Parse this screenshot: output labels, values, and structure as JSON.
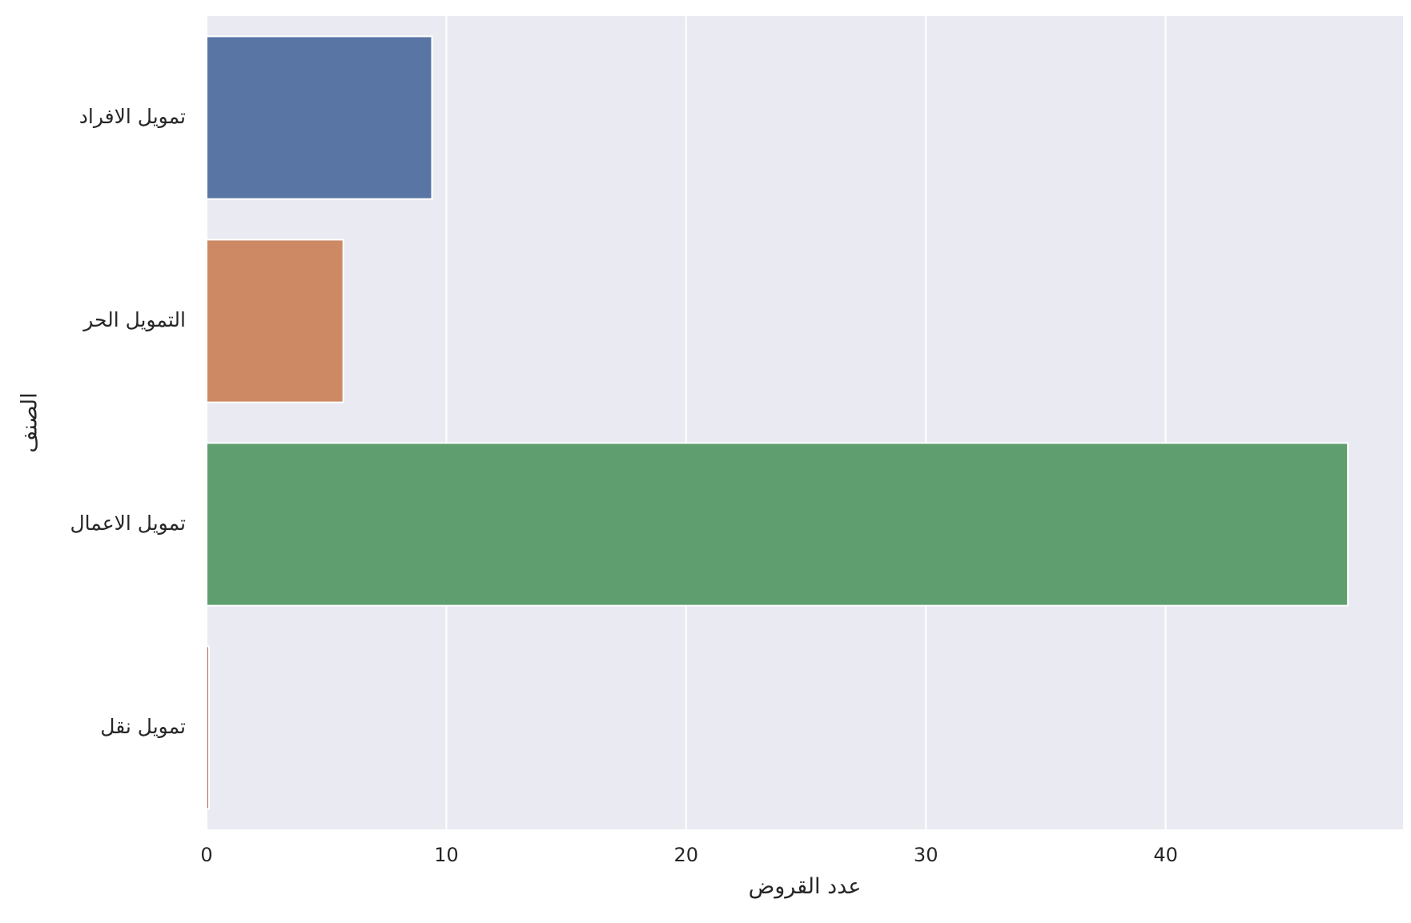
{
  "chart_data": {
    "type": "bar",
    "orientation": "horizontal",
    "categories": [
      "تمويل الافراد",
      "التمويل الحر",
      "تمويل الاعمال",
      "تمويل نقل"
    ],
    "values": [
      9.4,
      5.7,
      47.6,
      0.1
    ],
    "colors": [
      "#5975a4",
      "#cc8963",
      "#5f9e6e",
      "#b55d60"
    ],
    "xlabel": "عدد القروض",
    "ylabel": "الصنف",
    "xlim": [
      0,
      49.9
    ],
    "xticks": [
      0,
      10,
      20,
      30,
      40
    ],
    "grid": true,
    "legend": "none",
    "style": {
      "plot_background": "#eaeaf2",
      "grid_color": "#ffffff",
      "bar_edge_color": "#ffffff"
    }
  }
}
